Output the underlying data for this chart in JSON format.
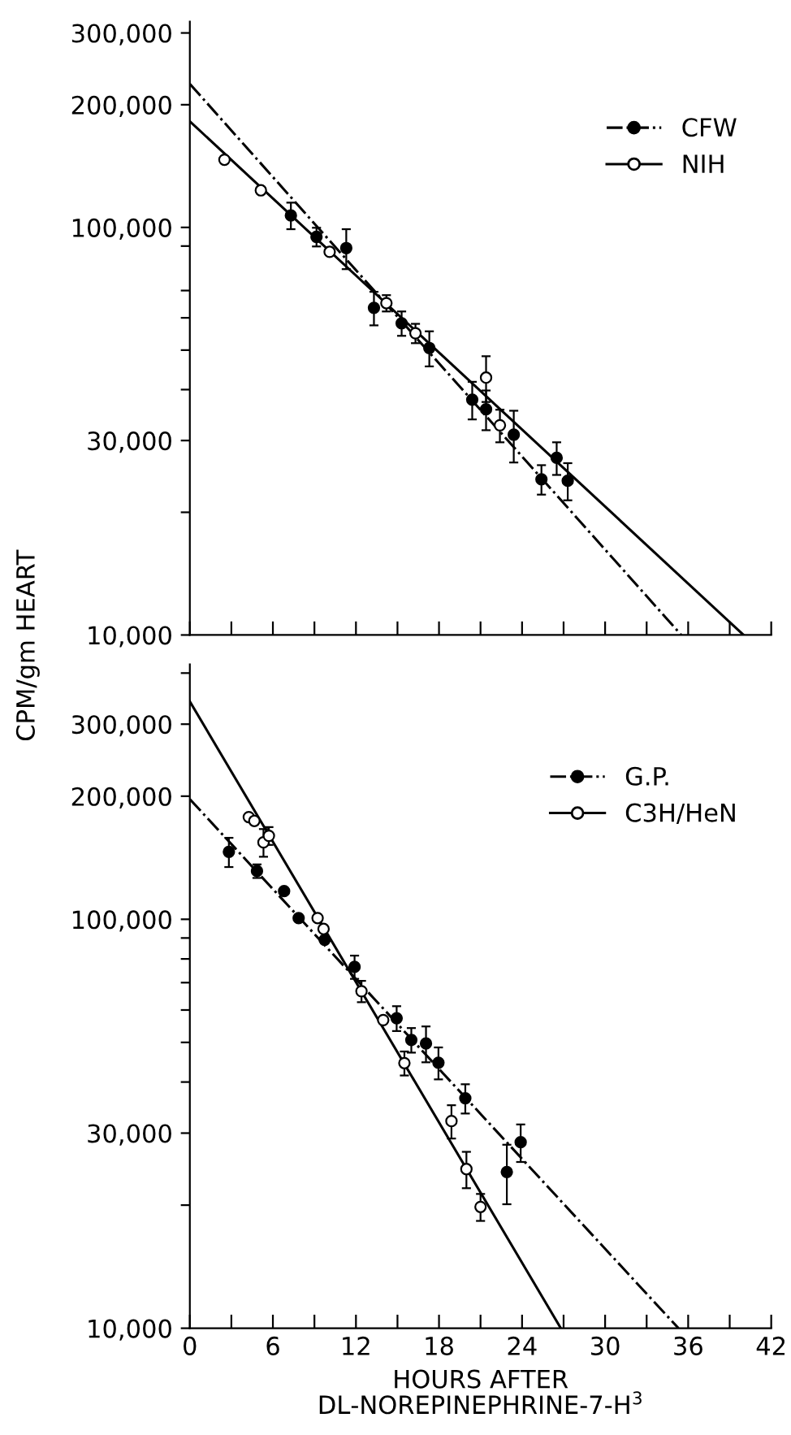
{
  "chart_data": [
    {
      "type": "scatter",
      "ylabel": "CPM/gm HEART",
      "log": "y",
      "grid": false,
      "legend": "top right",
      "marker": "circle",
      "tick_labels": "y",
      "xlim": [
        0,
        42
      ],
      "xticks": [
        {
          "value": 0,
          "label": null
        },
        {
          "value": 3,
          "label": null
        },
        {
          "value": 6,
          "label": null
        },
        {
          "value": 9,
          "label": null
        },
        {
          "value": 12,
          "label": null
        },
        {
          "value": 15,
          "label": null
        },
        {
          "value": 18,
          "label": null
        },
        {
          "value": 21,
          "label": null
        },
        {
          "value": 24,
          "label": null
        },
        {
          "value": 27,
          "label": null
        },
        {
          "value": 30,
          "label": null
        },
        {
          "value": 33,
          "label": null
        },
        {
          "value": 36,
          "label": null
        },
        {
          "value": 39,
          "label": null
        },
        {
          "value": 42,
          "label": null
        }
      ],
      "ylim": [
        10000,
        320000
      ],
      "yticks": [
        {
          "value": 10000,
          "label": "10,000"
        },
        {
          "value": 20000,
          "label": null
        },
        {
          "value": 30000,
          "label": "30,000"
        },
        {
          "value": 40000,
          "label": null
        },
        {
          "value": 50000,
          "label": null
        },
        {
          "value": 60000,
          "label": null
        },
        {
          "value": 70000,
          "label": null
        },
        {
          "value": 90000,
          "label": null
        },
        {
          "value": 100000,
          "label": "100,000"
        },
        {
          "value": 200000,
          "label": "200,000"
        },
        {
          "value": 300000,
          "label": "300,000"
        }
      ],
      "series": [
        {
          "name": "CFW",
          "color": "#000000",
          "x": [
            7.3,
            9.15,
            11.3,
            13.3,
            15.3,
            17.3,
            20.4,
            21.4,
            23.4,
            25.4,
            26.5,
            27.3
          ],
          "values": [
            107000,
            94800,
            89000,
            63500,
            58200,
            50600,
            37800,
            35800,
            31000,
            24100,
            27200,
            23900
          ],
          "errors": [
            8000,
            5000,
            10000,
            6000,
            4000,
            5000,
            4000,
            4000,
            4500,
            2000,
            2500,
            2500
          ]
        },
        {
          "type": "line",
          "marker": "none",
          "color": "#000000",
          "line_style": "dashdot",
          "x": [
            0,
            35.5
          ],
          "values": [
            225000,
            10000
          ]
        },
        {
          "name": "NIH",
          "color": "#ffffff",
          "x": [
            2.5,
            5.13,
            10.1,
            14.2,
            16.3,
            21.4,
            22.4
          ],
          "values": [
            146600,
            123300,
            87100,
            65200,
            55000,
            42800,
            32700
          ],
          "errors": [
            null,
            null,
            null,
            3000,
            3000,
            5500,
            3000
          ]
        },
        {
          "type": "line",
          "marker": "none",
          "color": "#000000",
          "line_style": "solid",
          "x": [
            0,
            40
          ],
          "values": [
            182000,
            10000
          ]
        }
      ]
    },
    {
      "type": "scatter",
      "xlabel": "HOURS AFTER\nDL-NOREPINEPHRINE-7-H$^{3}$",
      "log": "y",
      "grid": false,
      "legend": "top right",
      "marker": "circle",
      "xlim": [
        0,
        42
      ],
      "xticks": [
        0,
        {
          "value": 3,
          "label": null
        },
        6,
        {
          "value": 9,
          "label": null
        },
        12,
        {
          "value": 15,
          "label": null
        },
        18,
        {
          "value": 21,
          "label": null
        },
        24,
        {
          "value": 27,
          "label": null
        },
        30,
        {
          "value": 33,
          "label": null
        },
        36,
        {
          "value": 39,
          "label": null
        },
        42
      ],
      "ylim": [
        10000,
        420000
      ],
      "yticks": [
        {
          "value": 10000,
          "label": "10,000"
        },
        {
          "value": 20000,
          "label": null
        },
        {
          "value": 30000,
          "label": "30,000"
        },
        {
          "value": 40000,
          "label": null
        },
        {
          "value": 50000,
          "label": null
        },
        {
          "value": 60000,
          "label": null
        },
        {
          "value": 70000,
          "label": null
        },
        {
          "value": 80000,
          "label": null
        },
        {
          "value": 90000,
          "label": null
        },
        {
          "value": 100000,
          "label": "100,000"
        },
        {
          "value": 200000,
          "label": "200,000"
        },
        {
          "value": 300000,
          "label": "300,000"
        },
        {
          "value": 400000,
          "label": null
        }
      ],
      "series": [
        {
          "name": "G.P.",
          "color": "#000000",
          "x": [
            2.82,
            4.85,
            6.81,
            7.86,
            9.74,
            11.9,
            14.94,
            16.0,
            17.06,
            17.96,
            19.9,
            22.9,
            23.9
          ],
          "values": [
            146200,
            131200,
            117200,
            100700,
            89100,
            76500,
            57300,
            50700,
            49700,
            44600,
            36500,
            24100,
            28500
          ],
          "errors": [
            12000,
            5000,
            null,
            null,
            null,
            5000,
            4000,
            3500,
            5000,
            4000,
            3000,
            4000,
            3000
          ]
        },
        {
          "type": "line",
          "marker": "none",
          "color": "#000000",
          "line_style": "dashdot",
          "x": [
            0,
            35.3
          ],
          "values": [
            196700,
            10000
          ]
        },
        {
          "name": "C3H/HeN",
          "color": "#ffffff",
          "x": [
            4.26,
            4.66,
            5.32,
            5.71,
            9.23,
            9.66,
            12.4,
            13.97,
            15.5,
            18.9,
            19.98,
            21.0
          ],
          "values": [
            177800,
            174000,
            154200,
            160000,
            100700,
            94700,
            66700,
            56700,
            44500,
            32100,
            24500,
            19800
          ],
          "errors": [
            null,
            null,
            12000,
            8000,
            null,
            null,
            4000,
            null,
            3000,
            3000,
            2500,
            1500
          ]
        },
        {
          "type": "line",
          "marker": "none",
          "color": "#000000",
          "line_style": "solid",
          "x": [
            0,
            26.8
          ],
          "values": [
            341000,
            10000
          ]
        }
      ]
    }
  ]
}
